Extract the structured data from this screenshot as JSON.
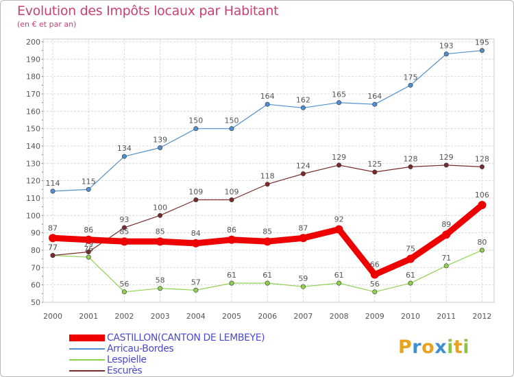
{
  "title": "Evolution des Impôts locaux par Habitant",
  "subtitle": "(en € et par an)",
  "logo": {
    "text": "Proxiti",
    "letters": [
      {
        "ch": "P",
        "color": "#e8a21c"
      },
      {
        "ch": "r",
        "color": "#3d8fd1"
      },
      {
        "ch": "o",
        "color": "#e8a21c"
      },
      {
        "ch": "x",
        "color": "#3d8fd1"
      },
      {
        "ch": "i",
        "color": "#8bc34a"
      },
      {
        "ch": "t",
        "color": "#e8a21c"
      },
      {
        "ch": "i",
        "color": "#8bc34a"
      }
    ]
  },
  "chart_data": {
    "type": "line",
    "x": [
      "2000",
      "2001",
      "2002",
      "2003",
      "2004",
      "2005",
      "2006",
      "2007",
      "2008",
      "2009",
      "2010",
      "2011",
      "2012"
    ],
    "ylim": [
      50,
      200
    ],
    "yticks": [
      50,
      60,
      70,
      80,
      90,
      100,
      110,
      120,
      130,
      140,
      150,
      160,
      170,
      180,
      190,
      200
    ],
    "grid": true,
    "legend_position": "bottom",
    "series": [
      {
        "name": "Arricau-Bordes",
        "color": "#4f8fcf",
        "values": [
          114,
          115,
          134,
          139,
          150,
          150,
          164,
          162,
          165,
          164,
          175,
          193,
          195
        ]
      },
      {
        "name": "Lespielle",
        "color": "#8fd14f",
        "values": [
          77,
          76,
          56,
          58,
          57,
          61,
          61,
          59,
          61,
          56,
          61,
          71,
          80
        ]
      },
      {
        "name": "Escurès",
        "color": "#7a2a2a",
        "values": [
          77,
          79,
          93,
          100,
          109,
          109,
          118,
          124,
          129,
          125,
          128,
          129,
          128
        ]
      },
      {
        "name": "CASTILLON(CANTON DE LEMBEYE)",
        "color": "#ee0000",
        "values": [
          87,
          86,
          85,
          85,
          84,
          86,
          85,
          87,
          92,
          66,
          75,
          89,
          106
        ]
      }
    ]
  }
}
